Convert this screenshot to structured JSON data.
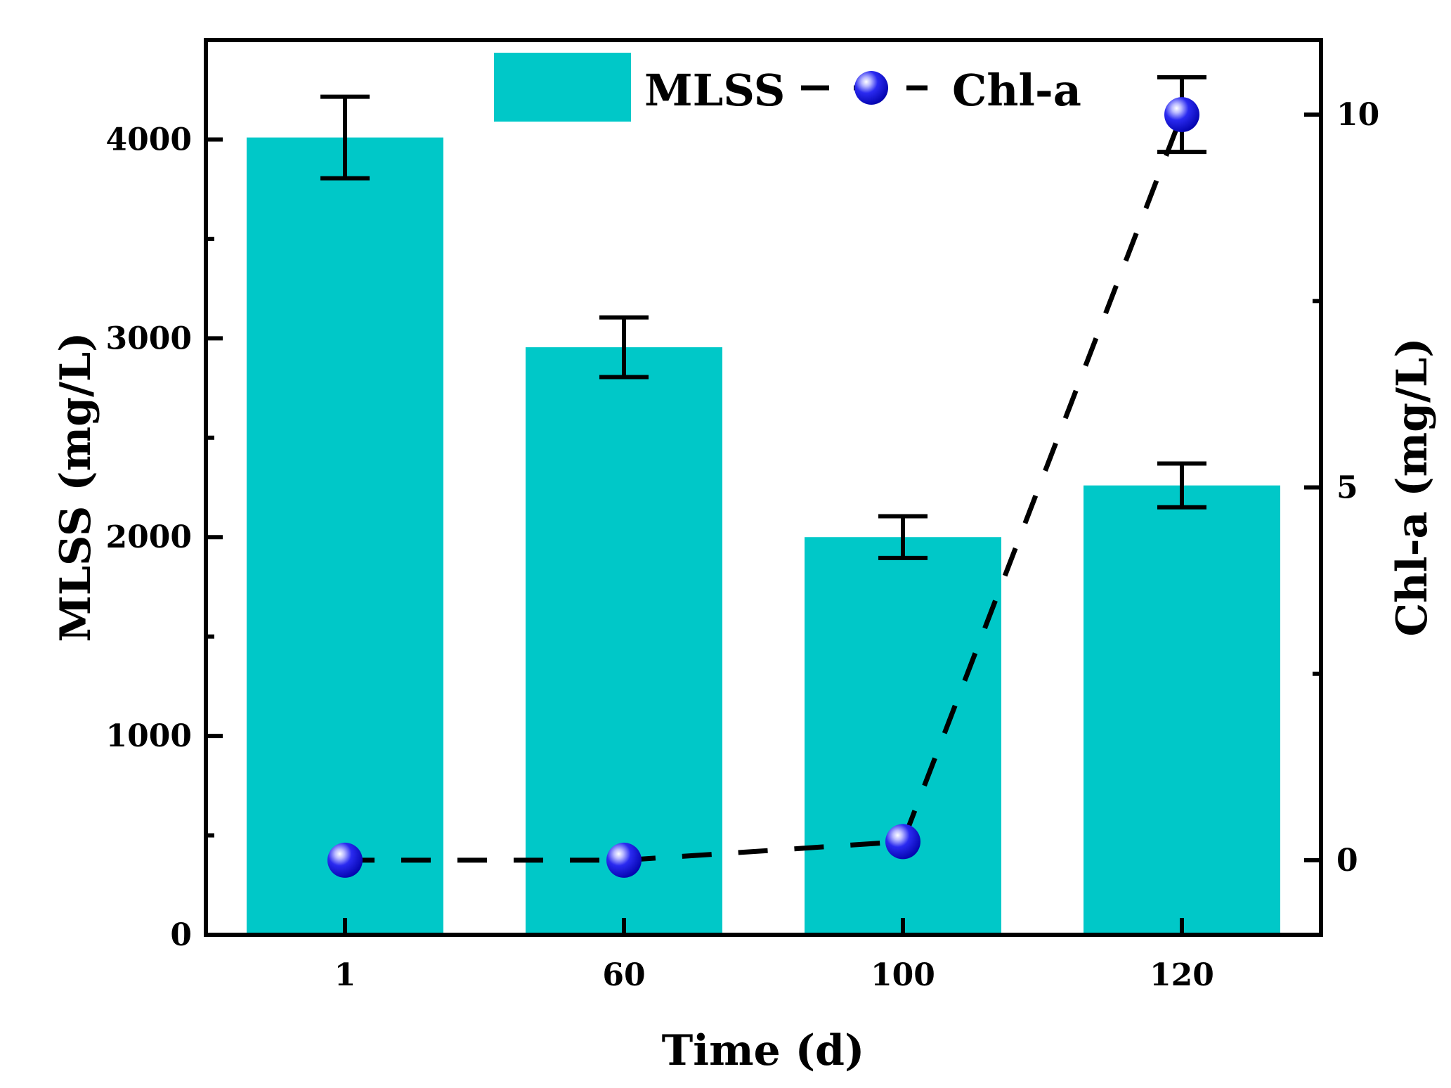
{
  "chart_data": {
    "type": "bar",
    "categories": [
      "1",
      "60",
      "100",
      "120"
    ],
    "xlabel": "Time (d)",
    "ylabel": "MLSS (mg/L)",
    "y2label": "Chl-a (mg/L)",
    "ylim": [
      0,
      4500
    ],
    "y2lim": [
      -1,
      11
    ],
    "yticks": [
      0,
      1000,
      2000,
      3000,
      4000
    ],
    "y2ticks": [
      0,
      5,
      10
    ],
    "legend_position": "top",
    "series": [
      {
        "name": "MLSS",
        "kind": "bar",
        "axis": "left",
        "color": "#00c8c8",
        "values": [
          4010,
          2955,
          2000,
          2260
        ],
        "errors": [
          205,
          150,
          105,
          110
        ]
      },
      {
        "name": "Chl-a",
        "kind": "line",
        "axis": "right",
        "color": "#1010e0",
        "line_style": "dashed",
        "values": [
          0.0,
          0.0,
          0.25,
          10.0
        ],
        "errors": [
          0,
          0,
          0,
          0.5
        ]
      }
    ]
  }
}
